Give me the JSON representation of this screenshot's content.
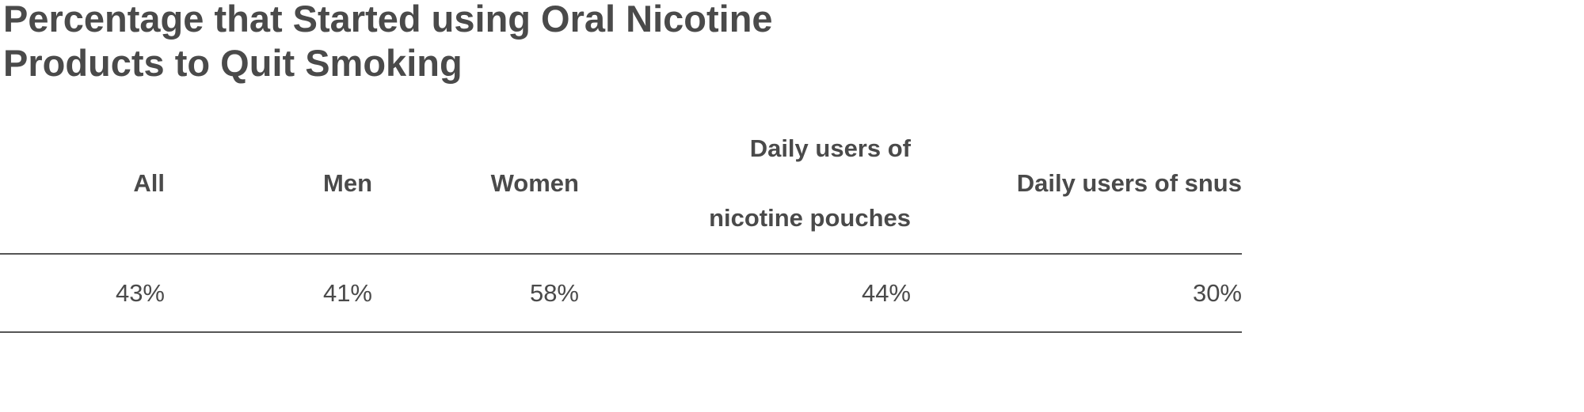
{
  "header": {
    "title": "Percentage that Started using Oral Nicotine Products to Quit Smoking"
  },
  "table": {
    "headers": [
      "All",
      "Men",
      "Women",
      "Daily users of nicotine pouches",
      "Daily users of snus"
    ],
    "rows": [
      [
        "43%",
        "41%",
        "58%",
        "44%",
        "30%"
      ]
    ]
  }
}
